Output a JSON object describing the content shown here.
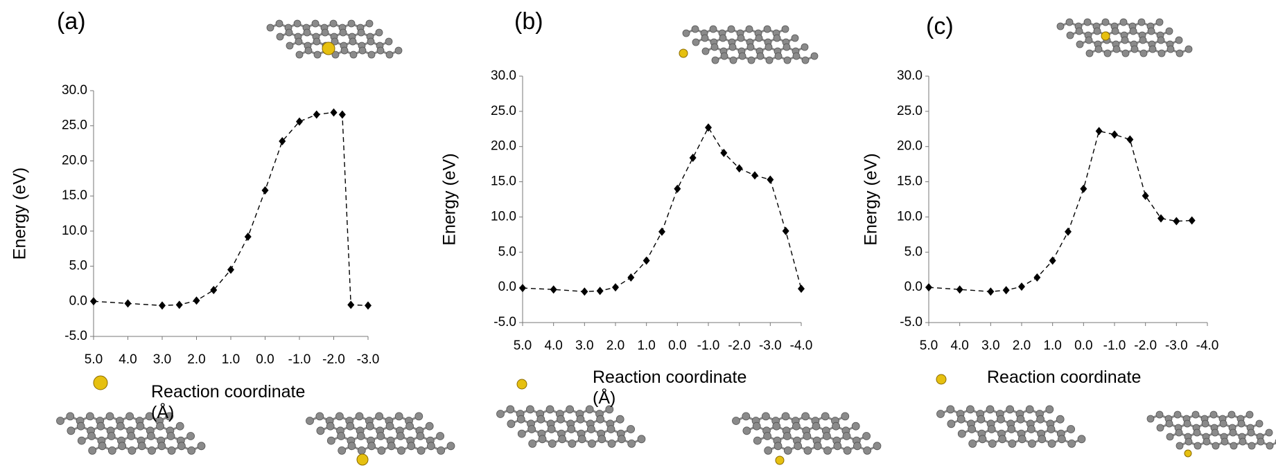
{
  "chart_data": [
    {
      "type": "line",
      "title": "(a)",
      "xlabel": "Reaction coordinate (Å)",
      "ylabel": "Energy (eV)",
      "color": "#000000",
      "x": [
        5.0,
        4.0,
        3.0,
        2.5,
        2.0,
        1.5,
        1.0,
        0.5,
        0.0,
        -0.5,
        -1.0,
        -1.5,
        -2.0,
        -2.25,
        -2.5,
        -3.0
      ],
      "values": [
        0,
        -0.3,
        -0.6,
        -0.5,
        0.1,
        1.6,
        4.5,
        9.2,
        15.8,
        22.8,
        25.6,
        26.6,
        26.9,
        26.6,
        -0.5,
        -0.6
      ],
      "xlim": [
        5,
        -3
      ],
      "ylim": [
        -5,
        30
      ],
      "xticks": [
        {
          "value": 5,
          "label": "5.0"
        },
        {
          "value": 4,
          "label": "4.0"
        },
        {
          "value": 3,
          "label": "3.0"
        },
        {
          "value": 2,
          "label": "2.0"
        },
        {
          "value": 1,
          "label": "1.0"
        },
        {
          "value": 0,
          "label": "0.0"
        },
        {
          "value": -1,
          "label": "-1.0"
        },
        {
          "value": -2,
          "label": "-2.0"
        },
        {
          "value": -3,
          "label": "-3.0"
        }
      ],
      "yticks": [
        {
          "value": -5,
          "label": "-5.0"
        },
        {
          "value": 0,
          "label": "0.0"
        },
        {
          "value": 5,
          "label": "5.0"
        },
        {
          "value": 10,
          "label": "10.0"
        },
        {
          "value": 15,
          "label": "15.0"
        },
        {
          "value": 20,
          "label": "20.0"
        },
        {
          "value": 25,
          "label": "25.0"
        },
        {
          "value": 30,
          "label": "30.0"
        }
      ]
    },
    {
      "type": "line",
      "title": "(b)",
      "xlabel": "Reaction coordinate (Å)",
      "ylabel": "Energy (eV)",
      "color": "#000000",
      "x": [
        5.0,
        4.0,
        3.0,
        2.5,
        2.0,
        1.5,
        1.0,
        0.5,
        0.0,
        -0.5,
        -1.0,
        -1.5,
        -2.0,
        -2.5,
        -3.0,
        -3.5,
        -4.0
      ],
      "values": [
        -0.1,
        -0.3,
        -0.6,
        -0.5,
        0,
        1.4,
        3.8,
        7.9,
        14.0,
        18.4,
        22.7,
        19.1,
        16.9,
        15.9,
        15.3,
        8.0,
        -0.2
      ],
      "xlim": [
        5,
        -4
      ],
      "ylim": [
        -5,
        30
      ],
      "xticks": [
        {
          "value": 5,
          "label": "5.0"
        },
        {
          "value": 4,
          "label": "4.0"
        },
        {
          "value": 3,
          "label": "3.0"
        },
        {
          "value": 2,
          "label": "2.0"
        },
        {
          "value": 1,
          "label": "1.0"
        },
        {
          "value": 0,
          "label": "0.0"
        },
        {
          "value": -1,
          "label": "-1.0"
        },
        {
          "value": -2,
          "label": "-2.0"
        },
        {
          "value": -3,
          "label": "-3.0"
        },
        {
          "value": -4,
          "label": "-4.0"
        }
      ],
      "yticks": [
        {
          "value": -5,
          "label": "-5.0"
        },
        {
          "value": 0,
          "label": "0.0"
        },
        {
          "value": 5,
          "label": "5.0"
        },
        {
          "value": 10,
          "label": "10.0"
        },
        {
          "value": 15,
          "label": "15.0"
        },
        {
          "value": 20,
          "label": "20.0"
        },
        {
          "value": 25,
          "label": "25.0"
        },
        {
          "value": 30,
          "label": "30.0"
        }
      ]
    },
    {
      "type": "line",
      "title": "(c)",
      "xlabel": "Reaction coordinate",
      "ylabel": "Energy (eV)",
      "color": "#000000",
      "x": [
        5.0,
        4.0,
        3.0,
        2.5,
        2.0,
        1.5,
        1.0,
        0.5,
        0.0,
        -0.5,
        -1.0,
        -1.5,
        -2.0,
        -2.5,
        -3.0,
        -3.5
      ],
      "values": [
        0,
        -0.3,
        -0.6,
        -0.4,
        0.1,
        1.4,
        3.8,
        7.9,
        14.0,
        22.2,
        21.7,
        21.0,
        13.0,
        9.8,
        9.4,
        9.5
      ],
      "xlim": [
        5,
        -4
      ],
      "ylim": [
        -5,
        30
      ],
      "xticks": [
        {
          "value": 5,
          "label": "5.0"
        },
        {
          "value": 4,
          "label": "4.0"
        },
        {
          "value": 3,
          "label": "3.0"
        },
        {
          "value": 2,
          "label": "2.0"
        },
        {
          "value": 1,
          "label": "1.0"
        },
        {
          "value": 0,
          "label": "0.0"
        },
        {
          "value": -1,
          "label": "-1.0"
        },
        {
          "value": -2,
          "label": "-2.0"
        },
        {
          "value": -3,
          "label": "-3.0"
        },
        {
          "value": -4,
          "label": "-4.0"
        }
      ],
      "yticks": [
        {
          "value": -5,
          "label": "-5.0"
        },
        {
          "value": 0,
          "label": "0.0"
        },
        {
          "value": 5,
          "label": "5.0"
        },
        {
          "value": 10,
          "label": "10.0"
        },
        {
          "value": 15,
          "label": "15.0"
        },
        {
          "value": 20,
          "label": "20.0"
        },
        {
          "value": 25,
          "label": "25.0"
        },
        {
          "value": 30,
          "label": "30.0"
        }
      ]
    }
  ]
}
